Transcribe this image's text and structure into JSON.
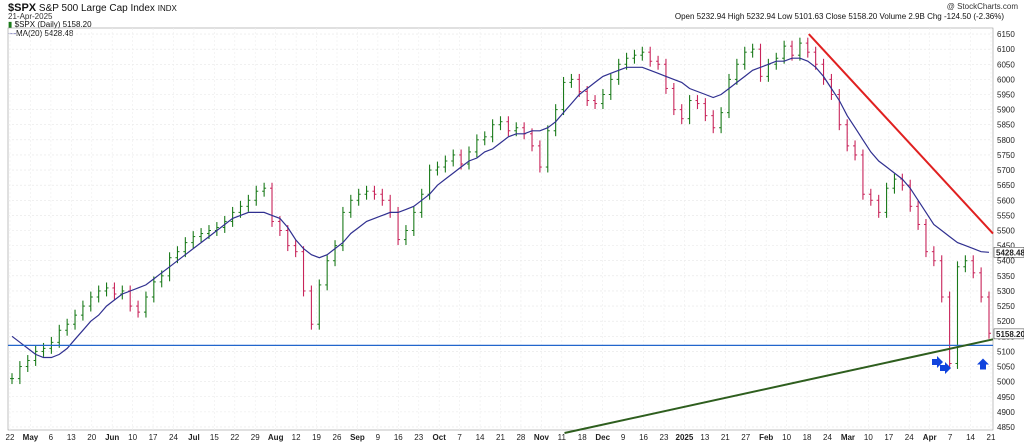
{
  "header": {
    "symbol": "$SPX",
    "name": "S&P 500 Large Cap Index",
    "exchange": "INDX",
    "date": "21-Apr-2025",
    "credit": "@ StockCharts.com",
    "ohlc_text": "Open 5232.94  High 5232.94  Low 5101.63  Close 5158.20  Volume 2.9B  Chg -124.50 (-2.36%)",
    "legend_price": "$SPX (Daily) 5158.20",
    "legend_ma": "MA(20) 5428.48"
  },
  "chart_data": {
    "type": "line",
    "title": "$SPX S&P 500 Large Cap Index INDX",
    "y_axis_ticks": [
      4850,
      4900,
      4950,
      5000,
      5050,
      5100,
      5150,
      5200,
      5250,
      5300,
      5350,
      5400,
      5450,
      5500,
      5550,
      5600,
      5650,
      5700,
      5750,
      5800,
      5850,
      5900,
      5950,
      6000,
      6050,
      6100,
      6150
    ],
    "ylim": [
      4840,
      6170
    ],
    "x_labels": [
      "22",
      "May",
      "6",
      "13",
      "20",
      "Jun",
      "10",
      "17",
      "24",
      "Jul",
      "15",
      "22",
      "29",
      "Aug",
      "12",
      "19",
      "26",
      "Sep",
      "9",
      "16",
      "23",
      "Oct",
      "7",
      "14",
      "21",
      "28",
      "Nov",
      "11",
      "18",
      "Dec",
      "9",
      "16",
      "23",
      "2025",
      "13",
      "21",
      "27",
      "Feb",
      "10",
      "18",
      "24",
      "Mar",
      "10",
      "17",
      "24",
      "Apr",
      "7",
      "14",
      "21"
    ],
    "price_label": "5158.20",
    "ma_label": "5428.48",
    "series": [
      {
        "name": "$SPX (Daily)",
        "color": "#1a7a1a",
        "values": [
          5010,
          5050,
          5070,
          5100,
          5110,
          5130,
          5170,
          5190,
          5220,
          5250,
          5280,
          5300,
          5310,
          5290,
          5300,
          5250,
          5230,
          5280,
          5330,
          5350,
          5410,
          5430,
          5460,
          5480,
          5490,
          5500,
          5510,
          5530,
          5560,
          5580,
          5600,
          5630,
          5640,
          5530,
          5500,
          5450,
          5430,
          5300,
          5190,
          5320,
          5400,
          5450,
          5560,
          5600,
          5620,
          5630,
          5620,
          5600,
          5560,
          5470,
          5500,
          5560,
          5620,
          5700,
          5710,
          5730,
          5750,
          5720,
          5760,
          5800,
          5810,
          5850,
          5860,
          5830,
          5840,
          5820,
          5780,
          5710,
          5830,
          5900,
          5990,
          6000,
          5960,
          5930,
          5920,
          5950,
          6000,
          6050,
          6070,
          6080,
          6090,
          6060,
          6050,
          5970,
          5900,
          5870,
          5930,
          5920,
          5880,
          5840,
          5890,
          6000,
          6050,
          6090,
          6100,
          6010,
          6050,
          6070,
          6110,
          6080,
          6120,
          6090,
          6050,
          6000,
          5950,
          5850,
          5780,
          5750,
          5620,
          5600,
          5560,
          5640,
          5670,
          5650,
          5580,
          5520,
          5430,
          5400,
          5280,
          5060,
          5380,
          5400,
          5360,
          5280,
          5160
        ]
      },
      {
        "name": "MA(20)",
        "color": "#303090",
        "values": [
          5150,
          5130,
          5110,
          5090,
          5080,
          5080,
          5090,
          5110,
          5140,
          5170,
          5200,
          5220,
          5250,
          5270,
          5290,
          5300,
          5310,
          5320,
          5340,
          5360,
          5380,
          5400,
          5420,
          5440,
          5460,
          5480,
          5500,
          5520,
          5540,
          5550,
          5560,
          5560,
          5560,
          5550,
          5540,
          5510,
          5470,
          5440,
          5420,
          5410,
          5420,
          5440,
          5460,
          5490,
          5510,
          5530,
          5540,
          5550,
          5560,
          5560,
          5570,
          5580,
          5600,
          5620,
          5650,
          5670,
          5690,
          5710,
          5730,
          5740,
          5760,
          5770,
          5790,
          5810,
          5820,
          5820,
          5830,
          5830,
          5840,
          5860,
          5890,
          5920,
          5950,
          5970,
          5990,
          6010,
          6020,
          6030,
          6040,
          6040,
          6040,
          6030,
          6020,
          6010,
          6000,
          5990,
          5970,
          5960,
          5950,
          5940,
          5950,
          5970,
          5990,
          6010,
          6030,
          6040,
          6050,
          6060,
          6060,
          6070,
          6070,
          6060,
          6040,
          6010,
          5970,
          5930,
          5880,
          5840,
          5800,
          5760,
          5730,
          5710,
          5690,
          5670,
          5640,
          5600,
          5560,
          5520,
          5500,
          5480,
          5460,
          5450,
          5440,
          5430,
          5428
        ]
      }
    ],
    "annotations": [
      {
        "type": "hline",
        "color": "#2266cc",
        "value": 5120
      },
      {
        "type": "trendline",
        "color": "#2e5e1e",
        "from": [
          0.565,
          4830
        ],
        "to": [
          1.0,
          5140
        ]
      },
      {
        "type": "trendline",
        "color": "#e02020",
        "from": [
          0.813,
          6150
        ],
        "to": [
          1.0,
          5490
        ]
      }
    ],
    "grid": true,
    "colors": {
      "up": "#1a7a1a",
      "down": "#c8245a",
      "ma": "#303090",
      "arrow": "#1144dd"
    }
  }
}
